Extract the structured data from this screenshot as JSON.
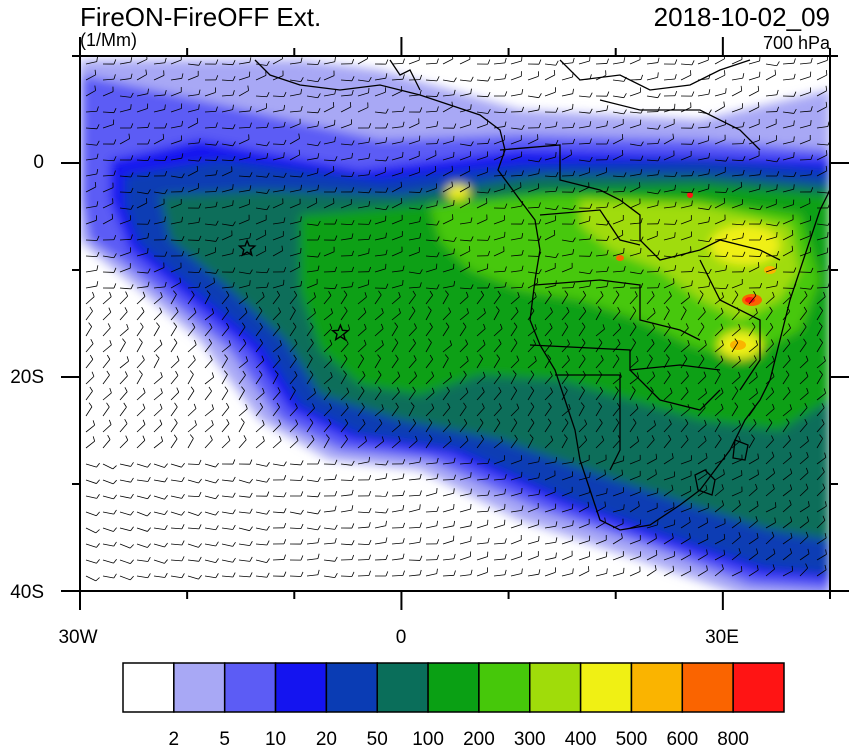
{
  "header": {
    "title": "FireON-FireOFF Ext.",
    "units": "(1/Mm)",
    "datetime": "2018-10-02_09",
    "level": "700 hPa"
  },
  "axes": {
    "x_labels": [
      "30W",
      "0",
      "30E"
    ],
    "y_labels": [
      "0",
      "20S",
      "40S"
    ]
  },
  "colorbar": {
    "colors": [
      "#ffffff",
      "#a8a8f5",
      "#5c5cf5",
      "#1414f0",
      "#0a3cb4",
      "#0a6e5a",
      "#0aa014",
      "#46c80a",
      "#a0dc0a",
      "#f0f014",
      "#fab400",
      "#fa6400",
      "#ff1414"
    ],
    "labels": [
      "2",
      "5",
      "10",
      "20",
      "50",
      "100",
      "200",
      "300",
      "400",
      "500",
      "600",
      "800"
    ]
  },
  "markers": [
    {
      "name": "star-marker-1",
      "lon": -14.4,
      "lat": -8.0
    },
    {
      "name": "star-marker-2",
      "lon": -5.7,
      "lat": -15.9
    }
  ]
}
